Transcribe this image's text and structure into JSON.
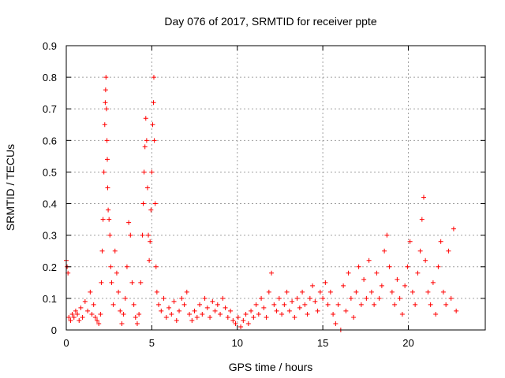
{
  "chart_data": {
    "type": "scatter",
    "title": "Day 076 of 2017, SRMTID for receiver ppte",
    "xlabel": "GPS time / hours",
    "ylabel": "SRMTID / TECUs",
    "xlim": [
      0,
      24.5
    ],
    "ylim": [
      0,
      0.9
    ],
    "xticks": [
      "0",
      "5",
      "10",
      "15",
      "20"
    ],
    "yticks": [
      "0",
      "0.1",
      "0.2",
      "0.3",
      "0.4",
      "0.5",
      "0.6",
      "0.7",
      "0.8",
      "0.9"
    ],
    "grid": true,
    "marker": "plus",
    "color": "#ff0000",
    "series": [
      {
        "points": [
          [
            0.0,
            0.22
          ],
          [
            0.05,
            0.2
          ],
          [
            0.1,
            0.18
          ],
          [
            0.15,
            0.04
          ],
          [
            0.25,
            0.03
          ],
          [
            0.35,
            0.05
          ],
          [
            0.45,
            0.04
          ],
          [
            0.55,
            0.06
          ],
          [
            0.65,
            0.05
          ],
          [
            0.75,
            0.03
          ],
          [
            0.85,
            0.07
          ],
          [
            0.95,
            0.04
          ],
          [
            1.1,
            0.09
          ],
          [
            1.25,
            0.06
          ],
          [
            1.4,
            0.12
          ],
          [
            1.5,
            0.05
          ],
          [
            1.6,
            0.08
          ],
          [
            1.7,
            0.04
          ],
          [
            1.8,
            0.03
          ],
          [
            1.9,
            0.02
          ],
          [
            2.0,
            0.05
          ],
          [
            2.05,
            0.15
          ],
          [
            2.1,
            0.25
          ],
          [
            2.15,
            0.35
          ],
          [
            2.2,
            0.5
          ],
          [
            2.25,
            0.65
          ],
          [
            2.28,
            0.72
          ],
          [
            2.3,
            0.76
          ],
          [
            2.32,
            0.8
          ],
          [
            2.35,
            0.7
          ],
          [
            2.38,
            0.6
          ],
          [
            2.4,
            0.54
          ],
          [
            2.42,
            0.45
          ],
          [
            2.45,
            0.38
          ],
          [
            2.5,
            0.35
          ],
          [
            2.55,
            0.3
          ],
          [
            2.6,
            0.2
          ],
          [
            2.65,
            0.15
          ],
          [
            2.75,
            0.08
          ],
          [
            2.85,
            0.25
          ],
          [
            2.95,
            0.18
          ],
          [
            3.05,
            0.12
          ],
          [
            3.15,
            0.06
          ],
          [
            3.25,
            0.02
          ],
          [
            3.35,
            0.05
          ],
          [
            3.45,
            0.1
          ],
          [
            3.55,
            0.2
          ],
          [
            3.65,
            0.34
          ],
          [
            3.75,
            0.3
          ],
          [
            3.85,
            0.15
          ],
          [
            3.95,
            0.08
          ],
          [
            4.05,
            0.04
          ],
          [
            4.15,
            0.02
          ],
          [
            4.25,
            0.05
          ],
          [
            4.35,
            0.15
          ],
          [
            4.45,
            0.3
          ],
          [
            4.5,
            0.4
          ],
          [
            4.55,
            0.5
          ],
          [
            4.6,
            0.58
          ],
          [
            4.65,
            0.67
          ],
          [
            4.7,
            0.6
          ],
          [
            4.75,
            0.45
          ],
          [
            4.8,
            0.3
          ],
          [
            4.85,
            0.22
          ],
          [
            4.9,
            0.28
          ],
          [
            4.95,
            0.38
          ],
          [
            5.0,
            0.5
          ],
          [
            5.05,
            0.65
          ],
          [
            5.1,
            0.72
          ],
          [
            5.12,
            0.8
          ],
          [
            5.15,
            0.6
          ],
          [
            5.2,
            0.4
          ],
          [
            5.25,
            0.2
          ],
          [
            5.3,
            0.12
          ],
          [
            5.4,
            0.08
          ],
          [
            5.55,
            0.06
          ],
          [
            5.7,
            0.1
          ],
          [
            5.85,
            0.04
          ],
          [
            6.0,
            0.07
          ],
          [
            6.15,
            0.05
          ],
          [
            6.3,
            0.09
          ],
          [
            6.45,
            0.03
          ],
          [
            6.6,
            0.06
          ],
          [
            6.75,
            0.1
          ],
          [
            6.9,
            0.08
          ],
          [
            7.05,
            0.12
          ],
          [
            7.2,
            0.05
          ],
          [
            7.35,
            0.03
          ],
          [
            7.5,
            0.06
          ],
          [
            7.65,
            0.04
          ],
          [
            7.8,
            0.08
          ],
          [
            7.95,
            0.05
          ],
          [
            8.1,
            0.1
          ],
          [
            8.25,
            0.07
          ],
          [
            8.4,
            0.04
          ],
          [
            8.55,
            0.09
          ],
          [
            8.7,
            0.06
          ],
          [
            8.85,
            0.08
          ],
          [
            9.0,
            0.05
          ],
          [
            9.15,
            0.1
          ],
          [
            9.3,
            0.07
          ],
          [
            9.45,
            0.04
          ],
          [
            9.6,
            0.06
          ],
          [
            9.75,
            0.03
          ],
          [
            9.9,
            0.02
          ],
          [
            10.05,
            0.04
          ],
          [
            10.2,
            0.01
          ],
          [
            10.35,
            0.03
          ],
          [
            10.5,
            0.05
          ],
          [
            10.65,
            0.02
          ],
          [
            10.8,
            0.06
          ],
          [
            10.95,
            0.04
          ],
          [
            11.1,
            0.08
          ],
          [
            11.25,
            0.05
          ],
          [
            11.4,
            0.1
          ],
          [
            11.55,
            0.07
          ],
          [
            11.7,
            0.04
          ],
          [
            11.85,
            0.12
          ],
          [
            12.0,
            0.18
          ],
          [
            12.15,
            0.08
          ],
          [
            12.3,
            0.06
          ],
          [
            12.45,
            0.1
          ],
          [
            12.6,
            0.05
          ],
          [
            12.75,
            0.08
          ],
          [
            12.9,
            0.12
          ],
          [
            13.05,
            0.06
          ],
          [
            13.2,
            0.09
          ],
          [
            13.35,
            0.04
          ],
          [
            13.5,
            0.1
          ],
          [
            13.65,
            0.07
          ],
          [
            13.8,
            0.12
          ],
          [
            13.95,
            0.08
          ],
          [
            14.1,
            0.05
          ],
          [
            14.25,
            0.1
          ],
          [
            14.4,
            0.14
          ],
          [
            14.55,
            0.09
          ],
          [
            14.7,
            0.06
          ],
          [
            14.85,
            0.12
          ],
          [
            15.0,
            0.1
          ],
          [
            15.15,
            0.15
          ],
          [
            15.3,
            0.08
          ],
          [
            15.45,
            0.12
          ],
          [
            15.6,
            0.05
          ],
          [
            15.75,
            0.02
          ],
          [
            15.9,
            0.08
          ],
          [
            16.05,
            0.0
          ],
          [
            16.2,
            0.14
          ],
          [
            16.35,
            0.06
          ],
          [
            16.5,
            0.18
          ],
          [
            16.65,
            0.1
          ],
          [
            16.8,
            0.04
          ],
          [
            16.95,
            0.12
          ],
          [
            17.1,
            0.2
          ],
          [
            17.25,
            0.08
          ],
          [
            17.4,
            0.16
          ],
          [
            17.55,
            0.1
          ],
          [
            17.7,
            0.22
          ],
          [
            17.85,
            0.12
          ],
          [
            18.0,
            0.08
          ],
          [
            18.15,
            0.18
          ],
          [
            18.3,
            0.1
          ],
          [
            18.45,
            0.14
          ],
          [
            18.6,
            0.25
          ],
          [
            18.75,
            0.3
          ],
          [
            18.9,
            0.2
          ],
          [
            19.05,
            0.12
          ],
          [
            19.2,
            0.08
          ],
          [
            19.35,
            0.16
          ],
          [
            19.5,
            0.1
          ],
          [
            19.65,
            0.05
          ],
          [
            19.8,
            0.14
          ],
          [
            19.95,
            0.2
          ],
          [
            20.1,
            0.28
          ],
          [
            20.25,
            0.12
          ],
          [
            20.4,
            0.08
          ],
          [
            20.55,
            0.18
          ],
          [
            20.7,
            0.25
          ],
          [
            20.8,
            0.35
          ],
          [
            20.9,
            0.42
          ],
          [
            21.0,
            0.22
          ],
          [
            21.15,
            0.12
          ],
          [
            21.3,
            0.08
          ],
          [
            21.45,
            0.15
          ],
          [
            21.6,
            0.05
          ],
          [
            21.75,
            0.2
          ],
          [
            21.9,
            0.28
          ],
          [
            22.05,
            0.12
          ],
          [
            22.2,
            0.08
          ],
          [
            22.35,
            0.25
          ],
          [
            22.5,
            0.1
          ],
          [
            22.65,
            0.32
          ],
          [
            22.8,
            0.06
          ]
        ]
      }
    ]
  }
}
